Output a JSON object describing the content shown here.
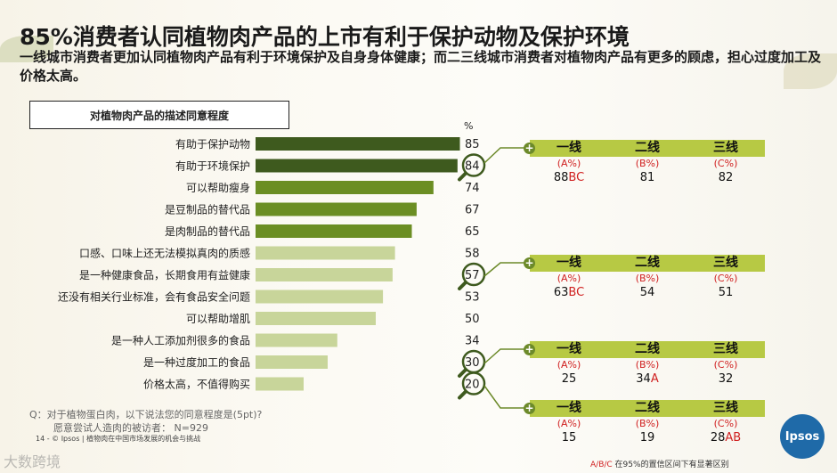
{
  "header": {
    "title": "85%消费者认同植物肉产品的上市有利于保护动物及保护环境",
    "subtitle": "一线城市消费者更加认同植物肉产品有利于环境保护及自身身体健康；而二三线城市消费者对植物肉产品有更多的顾虑，担心过度加工及价格太高。"
  },
  "chart_box_title": "对植物肉产品的描述同意程度",
  "percent_label": "%",
  "chart_data": {
    "type": "bar",
    "orientation": "horizontal",
    "unit": "%",
    "categories": [
      "有助于保护动物",
      "有助于环境保护",
      "可以帮助瘦身",
      "是豆制品的替代品",
      "是肉制品的替代品",
      "口感、口味上还无法模拟真肉的质感",
      "是一种健康食品，长期食用有益健康",
      "还没有相关行业标准，会有食品安全问题",
      "可以帮助增肌",
      "是一种人工添加剂很多的食品",
      "是一种过度加工的食品",
      "价格太高，不值得购买"
    ],
    "values": [
      85,
      84,
      74,
      67,
      65,
      58,
      57,
      53,
      50,
      34,
      30,
      20
    ],
    "colors": [
      "#3e5a1e",
      "#3e5a1e",
      "#6b8e23",
      "#6b8e23",
      "#6b8e23",
      "#c8d59a",
      "#c8d59a",
      "#c8d59a",
      "#c8d59a",
      "#c8d59a",
      "#c8d59a",
      "#c8d59a"
    ],
    "highlighted_values": [
      84,
      57,
      30,
      20
    ]
  },
  "tables": [
    {
      "headers": [
        "一线",
        "二线",
        "三线"
      ],
      "letters": [
        "(A%)",
        "(B%)",
        "(C%)"
      ],
      "values": [
        {
          "num": "88",
          "sig": "BC"
        },
        {
          "num": "81",
          "sig": ""
        },
        {
          "num": "82",
          "sig": ""
        }
      ]
    },
    {
      "headers": [
        "一线",
        "二线",
        "三线"
      ],
      "letters": [
        "(A%)",
        "(B%)",
        "(C%)"
      ],
      "values": [
        {
          "num": "63",
          "sig": "BC"
        },
        {
          "num": "54",
          "sig": ""
        },
        {
          "num": "51",
          "sig": ""
        }
      ]
    },
    {
      "headers": [
        "一线",
        "二线",
        "三线"
      ],
      "letters": [
        "(A%)",
        "(B%)",
        "(C%)"
      ],
      "values": [
        {
          "num": "25",
          "sig": ""
        },
        {
          "num": "34",
          "sig": "A"
        },
        {
          "num": "32",
          "sig": ""
        }
      ]
    },
    {
      "headers": [
        "一线",
        "二线",
        "三线"
      ],
      "letters": [
        "(A%)",
        "(B%)",
        "(C%)"
      ],
      "values": [
        {
          "num": "15",
          "sig": ""
        },
        {
          "num": "19",
          "sig": ""
        },
        {
          "num": "28",
          "sig": "AB"
        }
      ]
    }
  ],
  "question_note": "Q：对于植物蛋白肉，以下说法您的同意程度是(5pt)?",
  "base_note": "愿意尝试人造肉的被访者：  N=929",
  "footer": "14 -  © Ipsos | 植物肉在中国市场发展的机会与挑战",
  "significance_note": {
    "prefix": "A/B/C",
    "middle": "  在95%",
    "suffix": "的置信区间下有显著区别"
  },
  "logo_text": "Ipsos",
  "watermark": "大数跨境"
}
